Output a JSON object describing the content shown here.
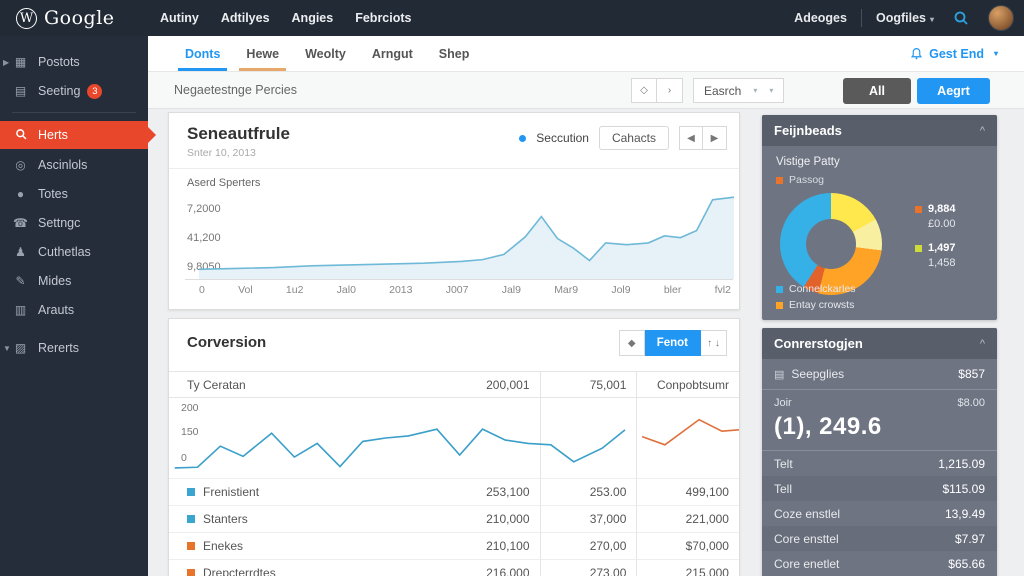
{
  "topbar": {
    "logo_w": "W",
    "logo_text": "Google",
    "menu": [
      {
        "label": "Autiny"
      },
      {
        "label": "Adtilyes"
      },
      {
        "label": "Angies"
      },
      {
        "label": "Febrciots"
      }
    ],
    "right_menu_1": "Adeoges",
    "right_menu_2": "Oogfiles",
    "caret": "▾"
  },
  "sidebar": {
    "items": [
      {
        "label": "Postots",
        "icon": "grid-icon",
        "caret": "▶"
      },
      {
        "label": "Seeting",
        "icon": "server-icon",
        "badge": "3"
      },
      {
        "label": "Herts",
        "icon": "search-icon",
        "active": true
      },
      {
        "label": "Ascinlols",
        "icon": "target-icon"
      },
      {
        "label": "Totes",
        "icon": "globe-icon"
      },
      {
        "label": "Settngc",
        "icon": "phone-icon"
      },
      {
        "label": "Cuthetlas",
        "icon": "person-icon"
      },
      {
        "label": "Mides",
        "icon": "pencil-icon"
      },
      {
        "label": "Arauts",
        "icon": "calendar-icon"
      },
      {
        "label": "Rererts",
        "icon": "layers-icon",
        "caret": "▼"
      }
    ]
  },
  "tabs": {
    "items": [
      {
        "label": "Donts",
        "active": true
      },
      {
        "label": "Hewe"
      },
      {
        "label": "Weolty"
      },
      {
        "label": "Arngut"
      },
      {
        "label": "Shep"
      }
    ],
    "user_menu": "Gest End"
  },
  "toolbar": {
    "breadcrumb": "Negaetestnge Percies",
    "nav_btn_1": "◇",
    "nav_btn_2": "›",
    "search_label": "Easrch",
    "all_button": "All",
    "accent_button": "Aegrt"
  },
  "overview_card": {
    "title": "Seneautfrule",
    "subtitle": "Snter 10, 2013",
    "legend": "Seccution",
    "button": "Cahacts",
    "pager_prev": "◀",
    "pager_next": "▶",
    "series_label": "Aserd Sperters"
  },
  "conversion_card": {
    "title": "Corversion",
    "btn_icon": "◆",
    "button": "Fenot",
    "btn_arrows": "↑ ↓",
    "header": {
      "col1": "Ty Ceratan",
      "col1_value": "200,001",
      "col2": "75,001",
      "col3": "Conpobtsumr"
    },
    "rows": [
      {
        "name": "Frenistient",
        "dot_color": "#3aa6d0",
        "v1": "253,100",
        "v2": "253.00",
        "v3": "499,100"
      },
      {
        "name": "Stanters",
        "dot_color": "#3aa6d0",
        "v1": "210,000",
        "v2": "37,000",
        "v3": "221,000"
      },
      {
        "name": "Enekes",
        "dot_color": "#e8742b",
        "v1": "210,100",
        "v2": "270,00",
        "v3": "$70,000"
      },
      {
        "name": "Drepcterrdtes",
        "dot_color": "#e8742b",
        "v1": "216,000",
        "v2": "273,00",
        "v3": "215,000"
      }
    ]
  },
  "feijnbeads_card": {
    "title": "Feijnbeads",
    "collapse_icon": "^",
    "subtitle": "Vistige Patty",
    "top_legend": "Passog",
    "stats": [
      {
        "value": "9,884",
        "sub": "£0.00",
        "color": "#e8742b"
      },
      {
        "value": "1,497",
        "sub": "1,458",
        "color": "#cddc39"
      }
    ],
    "legend": [
      {
        "label": "Connelckarles",
        "color": "#35b1e8"
      },
      {
        "label": "Entay crowsts",
        "color": "#ffa327"
      }
    ]
  },
  "stats_card": {
    "title": "Conrerstogjen",
    "collapse_icon": "^",
    "first_row": {
      "icon": "panel-icon",
      "label": "Seepglies",
      "value": "$857"
    },
    "joir": {
      "label": "Joir",
      "value": "$8.00",
      "big_value": "(1), 249.6"
    },
    "rows": [
      {
        "label": "Telt",
        "value": "1,215.09"
      },
      {
        "label": "Tell",
        "value": "$115.09"
      },
      {
        "label": "Coze enstlel",
        "value": "13,9.49"
      },
      {
        "label": "Core ensttel",
        "value": "$7.97"
      },
      {
        "label": "Core enetlet",
        "value": "$65.66"
      }
    ]
  },
  "colors": {
    "accent_blue": "#2196f3",
    "active_red": "#e8472b",
    "topbar_bg": "#222a35",
    "sidebar_bg": "#252d3a",
    "rail_card_bg": "#6e7482",
    "rail_header_bg": "#585e6a"
  },
  "chart_data": [
    {
      "type": "area",
      "title": "Seneautfrule",
      "series_label": "Aserd Sperters",
      "y_ticks": [
        "7,2000",
        "41,200",
        "9,8050"
      ],
      "x_ticks": [
        "0",
        "Vol",
        "1u2",
        "Jal0",
        "2013",
        "J007",
        "Jal9",
        "Mar9",
        "Jol9",
        "bler",
        "fvl2"
      ],
      "line_color": "#6fb9d8",
      "fill_color": "#e7f1f8",
      "points": [
        [
          0,
          11
        ],
        [
          7,
          12
        ],
        [
          14,
          13
        ],
        [
          21,
          15
        ],
        [
          28,
          16
        ],
        [
          35,
          17
        ],
        [
          42,
          18
        ],
        [
          49,
          20
        ],
        [
          53,
          22
        ],
        [
          57,
          28
        ],
        [
          61,
          48
        ],
        [
          64,
          71
        ],
        [
          67,
          46
        ],
        [
          70,
          35
        ],
        [
          73,
          21
        ],
        [
          76,
          41
        ],
        [
          80,
          39
        ],
        [
          84,
          41
        ],
        [
          87,
          49
        ],
        [
          90,
          47
        ],
        [
          93,
          55
        ],
        [
          96,
          90
        ],
        [
          100,
          93
        ]
      ]
    },
    {
      "type": "line",
      "title": "Corversion",
      "y_ticks": [
        "200",
        "150",
        "0"
      ],
      "series": [
        {
          "name": "blue",
          "color": "#3a9fc9",
          "points": [
            [
              1,
              6
            ],
            [
              5,
              7
            ],
            [
              9,
              38
            ],
            [
              13,
              23
            ],
            [
              18,
              57
            ],
            [
              22,
              22
            ],
            [
              26,
              42
            ],
            [
              30,
              8
            ],
            [
              34,
              45
            ],
            [
              38,
              50
            ],
            [
              42,
              53
            ],
            [
              47,
              63
            ],
            [
              51,
              25
            ],
            [
              55,
              63
            ],
            [
              59,
              47
            ],
            [
              63,
              42
            ],
            [
              67,
              40
            ],
            [
              71,
              15
            ],
            [
              76,
              35
            ],
            [
              80,
              62
            ]
          ]
        },
        {
          "name": "orange",
          "color": "#e0703a",
          "points": [
            [
              83,
              52
            ],
            [
              87,
              40
            ],
            [
              93,
              77
            ],
            [
              97,
              60
            ],
            [
              100,
              62
            ]
          ]
        }
      ]
    },
    {
      "type": "donut",
      "title": "Feijnbeads",
      "segments": [
        {
          "label": "yellow",
          "color": "#ffe84d",
          "value": 17
        },
        {
          "label": "pale-yellow",
          "color": "#f8f0a0",
          "value": 10
        },
        {
          "label": "Entay crowsts",
          "color": "#ffa327",
          "value": 27
        },
        {
          "label": "dark-orange",
          "color": "#e2622b",
          "value": 5
        },
        {
          "label": "Connelckarles",
          "color": "#35b1e8",
          "value": 41
        }
      ]
    }
  ]
}
